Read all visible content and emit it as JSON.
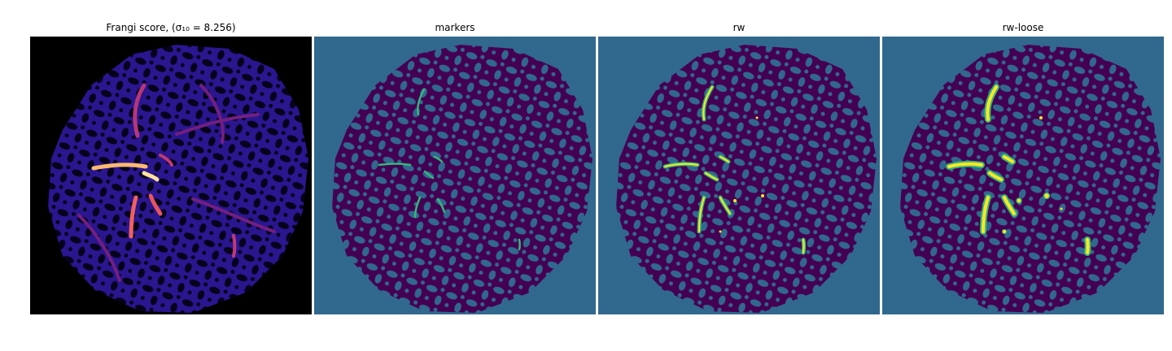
{
  "panels": [
    {
      "id": "frangi",
      "title": "Frangi score, (σ₁₀ = 8.256)",
      "colormap": "magma"
    },
    {
      "id": "markers",
      "title": "markers",
      "colormap": "viridis"
    },
    {
      "id": "rw",
      "title": "rw",
      "colormap": "viridis"
    },
    {
      "id": "rw-loose",
      "title": "rw-loose",
      "colormap": "viridis"
    }
  ],
  "colors": {
    "background_teal": "#31688e",
    "region_purple": "#440154",
    "marker_green": "#35b779",
    "vessel_yellow": "#fde725",
    "frangi_bg": "#000000",
    "frangi_body": "#1a0f6e",
    "frangi_hot": "#fcb970"
  }
}
